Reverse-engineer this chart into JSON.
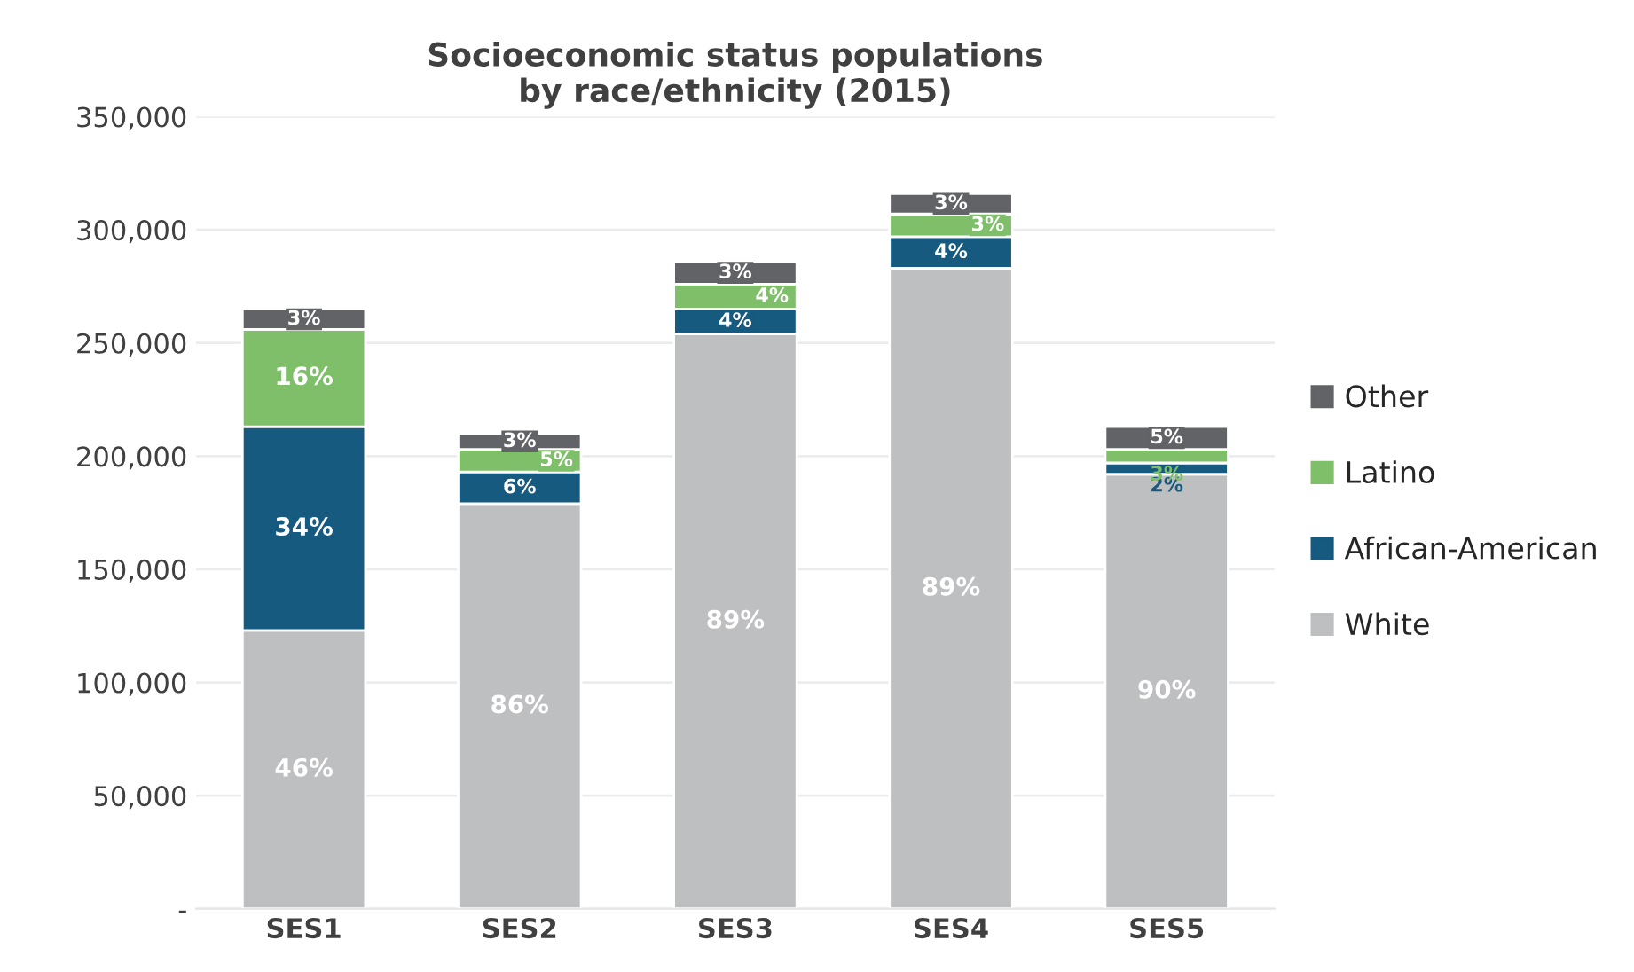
{
  "chart_data": {
    "type": "bar",
    "stacked": true,
    "title": "Socioeconomic status populations\nby race/ethnicity (2015)",
    "categories": [
      "SES1",
      "SES2",
      "SES3",
      "SES4",
      "SES5"
    ],
    "series": [
      {
        "name": "White",
        "color": "#bebfc1",
        "values": [
          123000,
          179000,
          254000,
          283000,
          192000
        ]
      },
      {
        "name": "African-American",
        "color": "#165a80",
        "values": [
          90000,
          14000,
          11000,
          14000,
          5000
        ]
      },
      {
        "name": "Latino",
        "color": "#7fbf6a",
        "values": [
          43000,
          10000,
          11000,
          10000,
          6000
        ]
      },
      {
        "name": "Other",
        "color": "#626366",
        "values": [
          9000,
          7000,
          10000,
          9000,
          10000
        ]
      }
    ],
    "annotations": [
      "46%",
      "34%",
      "16%",
      "3%",
      "86%",
      "6%",
      "5%",
      "3%",
      "89%",
      "4%",
      "4%",
      "3%",
      "89%",
      "4%",
      "3%",
      "3%",
      "90%",
      "2%",
      "3%",
      "5%"
    ],
    "ylim": [
      0,
      350000
    ],
    "yticks": [
      {
        "value": 0,
        "label": "-"
      },
      {
        "value": 50000,
        "label": "50,000"
      },
      {
        "value": 100000,
        "label": "100,000"
      },
      {
        "value": 150000,
        "label": "150,000"
      },
      {
        "value": 200000,
        "label": "200,000"
      },
      {
        "value": 250000,
        "label": "250,000"
      },
      {
        "value": 300000,
        "label": "300,000"
      },
      {
        "value": 350000,
        "label": "350,000"
      }
    ],
    "grid": "y",
    "legend": "right"
  }
}
